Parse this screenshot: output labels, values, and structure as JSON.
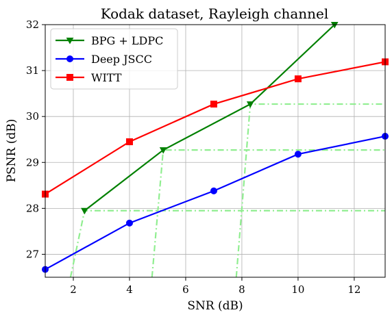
{
  "chart_data": {
    "type": "line",
    "title": "Kodak dataset, Rayleigh channel",
    "xlabel": "SNR (dB)",
    "ylabel": "PSNR (dB)",
    "xlim": [
      1,
      13.1
    ],
    "ylim": [
      26.5,
      32
    ],
    "xticks": [
      2,
      4,
      6,
      8,
      10,
      12
    ],
    "yticks": [
      27,
      28,
      29,
      30,
      31,
      32
    ],
    "grid": true,
    "legend_position": "top-left",
    "series": [
      {
        "name": "BPG + LDPC",
        "color": "#008000",
        "marker": "triangle-down",
        "x": [
          2.4,
          5.2,
          8.3,
          11.3
        ],
        "y": [
          27.95,
          29.27,
          30.27,
          32.0
        ]
      },
      {
        "name": "Deep JSCC",
        "color": "#0000ff",
        "marker": "circle",
        "x": [
          1,
          4,
          7,
          10,
          13.1
        ],
        "y": [
          26.67,
          27.68,
          28.38,
          29.18,
          29.57
        ]
      },
      {
        "name": "WITT",
        "color": "#ff0000",
        "marker": "square",
        "x": [
          1,
          4,
          7,
          10,
          13.1
        ],
        "y": [
          28.31,
          29.45,
          30.27,
          30.82,
          31.19
        ]
      }
    ],
    "auxiliary_lines": {
      "color": "#90ee90",
      "style": "dash-dot",
      "curves": [
        {
          "x": [
            1.9,
            2.4,
            13.1
          ],
          "y": [
            26.5,
            27.95,
            27.95
          ]
        },
        {
          "x": [
            4.8,
            5.2,
            13.1
          ],
          "y": [
            26.5,
            29.27,
            29.27
          ]
        },
        {
          "x": [
            7.8,
            8.3,
            13.1
          ],
          "y": [
            26.5,
            30.27,
            30.27
          ]
        }
      ]
    }
  }
}
